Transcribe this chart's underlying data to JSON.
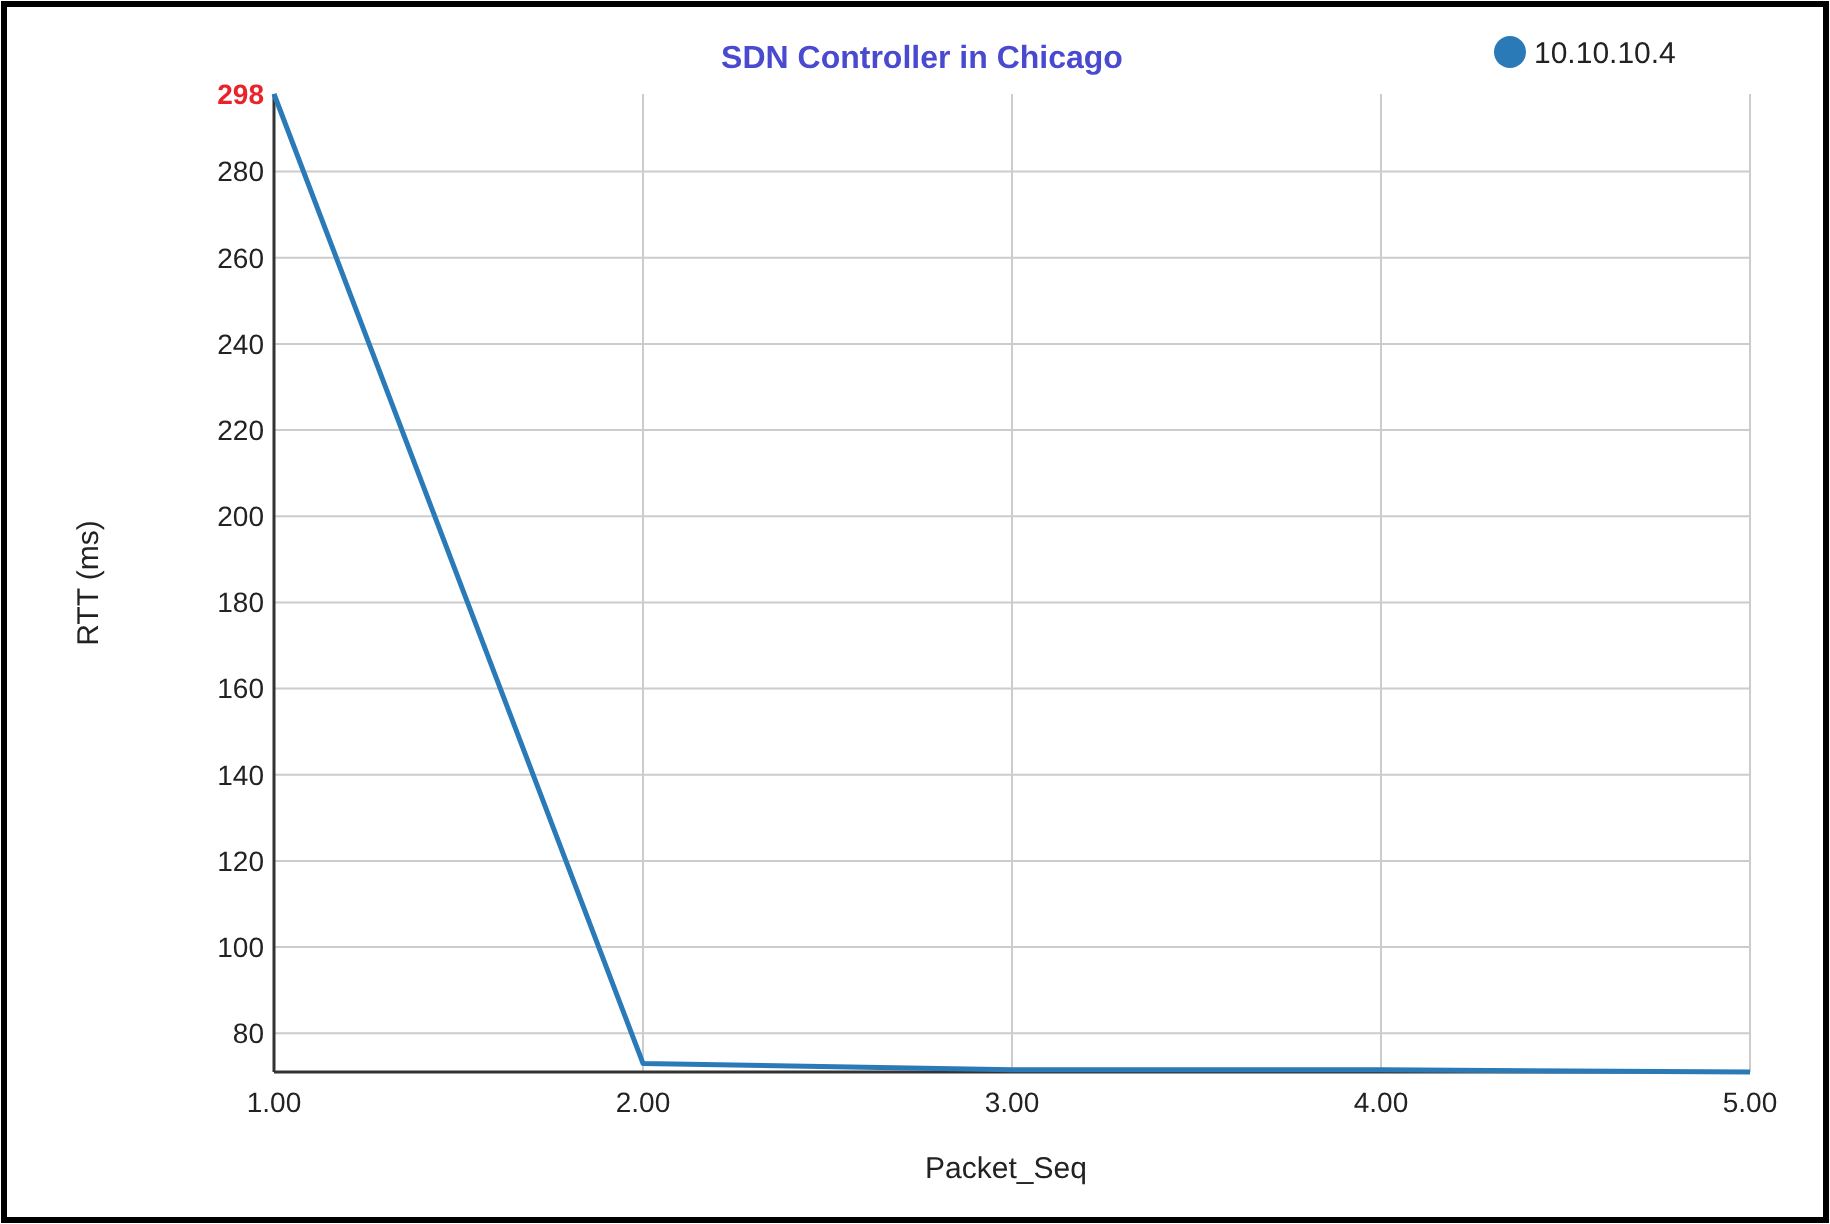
{
  "chart_data": {
    "type": "line",
    "title": "SDN Controller in Chicago",
    "xlabel": "Packet_Seq",
    "ylabel": "RTT (ms)",
    "x": [
      1,
      2,
      3,
      4,
      5
    ],
    "series": [
      {
        "name": "10.10.10.4",
        "color": "#2a7ab8",
        "values": [
          298,
          73,
          71.5,
          71.5,
          71
        ]
      }
    ],
    "xlim": [
      1,
      5
    ],
    "xticks": [
      {
        "value": 1,
        "label": "1.00"
      },
      {
        "value": 2,
        "label": "2.00"
      },
      {
        "value": 3,
        "label": "3.00"
      },
      {
        "value": 4,
        "label": "4.00"
      },
      {
        "value": 5,
        "label": "5.00"
      }
    ],
    "ylim": [
      71,
      298
    ],
    "yticks": [
      80,
      100,
      120,
      140,
      160,
      180,
      200,
      220,
      240,
      260,
      280,
      298
    ],
    "grid": true,
    "legend": "top right",
    "marker": "none",
    "line_style": "solid"
  }
}
